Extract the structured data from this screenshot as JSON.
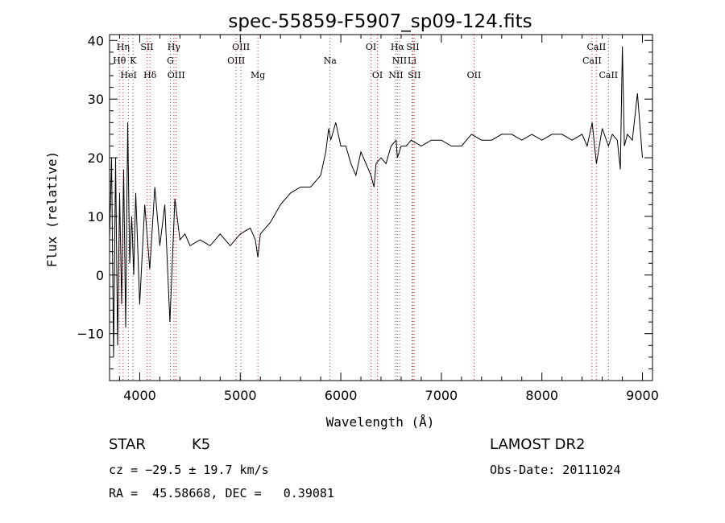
{
  "chart_data": {
    "type": "line",
    "title": "spec-55859-F5907_sp09-124.fits",
    "xlabel": "Wavelength (Å)",
    "ylabel": "Flux (relative)",
    "xlim": [
      3700,
      9100
    ],
    "ylim": [
      -18,
      41
    ],
    "x_ticks": [
      4000,
      5000,
      6000,
      7000,
      8000,
      9000
    ],
    "y_ticks": [
      -10,
      0,
      10,
      20,
      30,
      40
    ],
    "grid": false,
    "series": [
      {
        "color": "#000000",
        "x": [
          3700,
          3720,
          3740,
          3760,
          3780,
          3800,
          3820,
          3840,
          3860,
          3880,
          3900,
          3920,
          3940,
          3960,
          3980,
          4000,
          4050,
          4100,
          4150,
          4200,
          4250,
          4300,
          4350,
          4400,
          4450,
          4500,
          4600,
          4700,
          4800,
          4900,
          5000,
          5100,
          5150,
          5175,
          5200,
          5300,
          5400,
          5500,
          5600,
          5700,
          5800,
          5850,
          5880,
          5900,
          5950,
          6000,
          6050,
          6100,
          6150,
          6200,
          6250,
          6300,
          6330,
          6350,
          6400,
          6450,
          6500,
          6550,
          6563,
          6600,
          6650,
          6700,
          6800,
          6900,
          7000,
          7100,
          7200,
          7300,
          7400,
          7500,
          7600,
          7700,
          7800,
          7900,
          8000,
          8100,
          8200,
          8300,
          8400,
          8450,
          8500,
          8542,
          8600,
          8662,
          8700,
          8750,
          8780,
          8800,
          8820,
          8850,
          8900,
          8950,
          9000
        ],
        "values": [
          6,
          20,
          -14,
          20,
          -12,
          14,
          -5,
          18,
          -9,
          26,
          2,
          10,
          0,
          14,
          5,
          -5,
          12,
          1,
          15,
          5,
          12,
          -8,
          13,
          6,
          7,
          5,
          6,
          5,
          7,
          5,
          7,
          8,
          6,
          3,
          7,
          9,
          12,
          14,
          15,
          15,
          17,
          21,
          25,
          23,
          26,
          22,
          22,
          19,
          17,
          21,
          19,
          17,
          15,
          19,
          20,
          19,
          22,
          23,
          20,
          22,
          22,
          23,
          22,
          23,
          23,
          22,
          22,
          24,
          23,
          23,
          24,
          24,
          23,
          24,
          23,
          24,
          24,
          23,
          24,
          22,
          26,
          19,
          25,
          22,
          24,
          23,
          18,
          39,
          22,
          24,
          23,
          31,
          20
        ]
      }
    ],
    "line_annotations": [
      {
        "label": "Hη",
        "x": 3835,
        "row": 0
      },
      {
        "label": "Hθ",
        "x": 3798,
        "row": 1
      },
      {
        "label": "HeI",
        "x": 3889,
        "row": 2
      },
      {
        "label": "K",
        "x": 3934,
        "row": 1
      },
      {
        "label": "SII",
        "x": 4072,
        "row": 0
      },
      {
        "label": "Hδ",
        "x": 4102,
        "row": 2
      },
      {
        "label": "Hγ",
        "x": 4340,
        "row": 0
      },
      {
        "label": "G",
        "x": 4305,
        "row": 1
      },
      {
        "label": "OIII",
        "x": 4363,
        "row": 2
      },
      {
        "label": "OIII",
        "x": 5007,
        "row": 0
      },
      {
        "label": "OIII",
        "x": 4959,
        "row": 1
      },
      {
        "label": "Mg",
        "x": 5175,
        "row": 2
      },
      {
        "label": "Na",
        "x": 5893,
        "row": 1
      },
      {
        "label": "OI",
        "x": 6300,
        "row": 0
      },
      {
        "label": "OI",
        "x": 6364,
        "row": 2
      },
      {
        "label": "Hα",
        "x": 6563,
        "row": 0
      },
      {
        "label": "SII",
        "x": 6716,
        "row": 0
      },
      {
        "label": "NII",
        "x": 6584,
        "row": 1
      },
      {
        "label": "Li",
        "x": 6708,
        "row": 1
      },
      {
        "label": "NII",
        "x": 6548,
        "row": 2
      },
      {
        "label": "SII",
        "x": 6731,
        "row": 2
      },
      {
        "label": "OII",
        "x": 7325,
        "row": 2
      },
      {
        "label": "CaII",
        "x": 8542,
        "row": 0
      },
      {
        "label": "CaII",
        "x": 8498,
        "row": 1
      },
      {
        "label": "CaII",
        "x": 8662,
        "row": 2
      }
    ],
    "line_color": "#d03030"
  },
  "info": {
    "object_class": "STAR",
    "subclass": "K5",
    "survey": "LAMOST DR2",
    "cz": "cz = −29.5 ± 19.7 km/s",
    "obs_date": "Obs-Date: 20111024",
    "coords": "RA =  45.58668, DEC =   0.39081"
  }
}
